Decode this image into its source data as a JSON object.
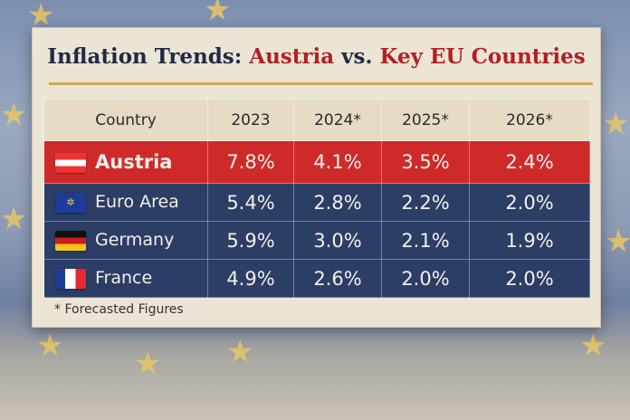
{
  "title": {
    "part1": "Inflation Trends: ",
    "part2": "Austria",
    "part3": " vs. ",
    "part4": "Key EU Countries"
  },
  "footnote": "* Forecasted Figures",
  "colors": {
    "austria_row": "#cf2a2a",
    "other_rows": "#2c3d66",
    "title_accent": "#b31f24",
    "rule": "#cfa94e"
  },
  "chart_data": {
    "type": "table",
    "columns": [
      "Country",
      "2023",
      "2024*",
      "2025*",
      "2026*"
    ],
    "rows": [
      {
        "country": "Austria",
        "flag": "austria-flag",
        "values": [
          "7.8%",
          "4.1%",
          "3.5%",
          "2.4%"
        ]
      },
      {
        "country": "Euro Area",
        "flag": "eu-flag",
        "values": [
          "5.4%",
          "2.8%",
          "2.2%",
          "2.0%"
        ]
      },
      {
        "country": "Germany",
        "flag": "germany-flag",
        "values": [
          "5.9%",
          "3.0%",
          "2.1%",
          "1.9%"
        ]
      },
      {
        "country": "France",
        "flag": "france-flag",
        "values": [
          "4.9%",
          "2.6%",
          "2.0%",
          "2.0%"
        ]
      }
    ]
  }
}
